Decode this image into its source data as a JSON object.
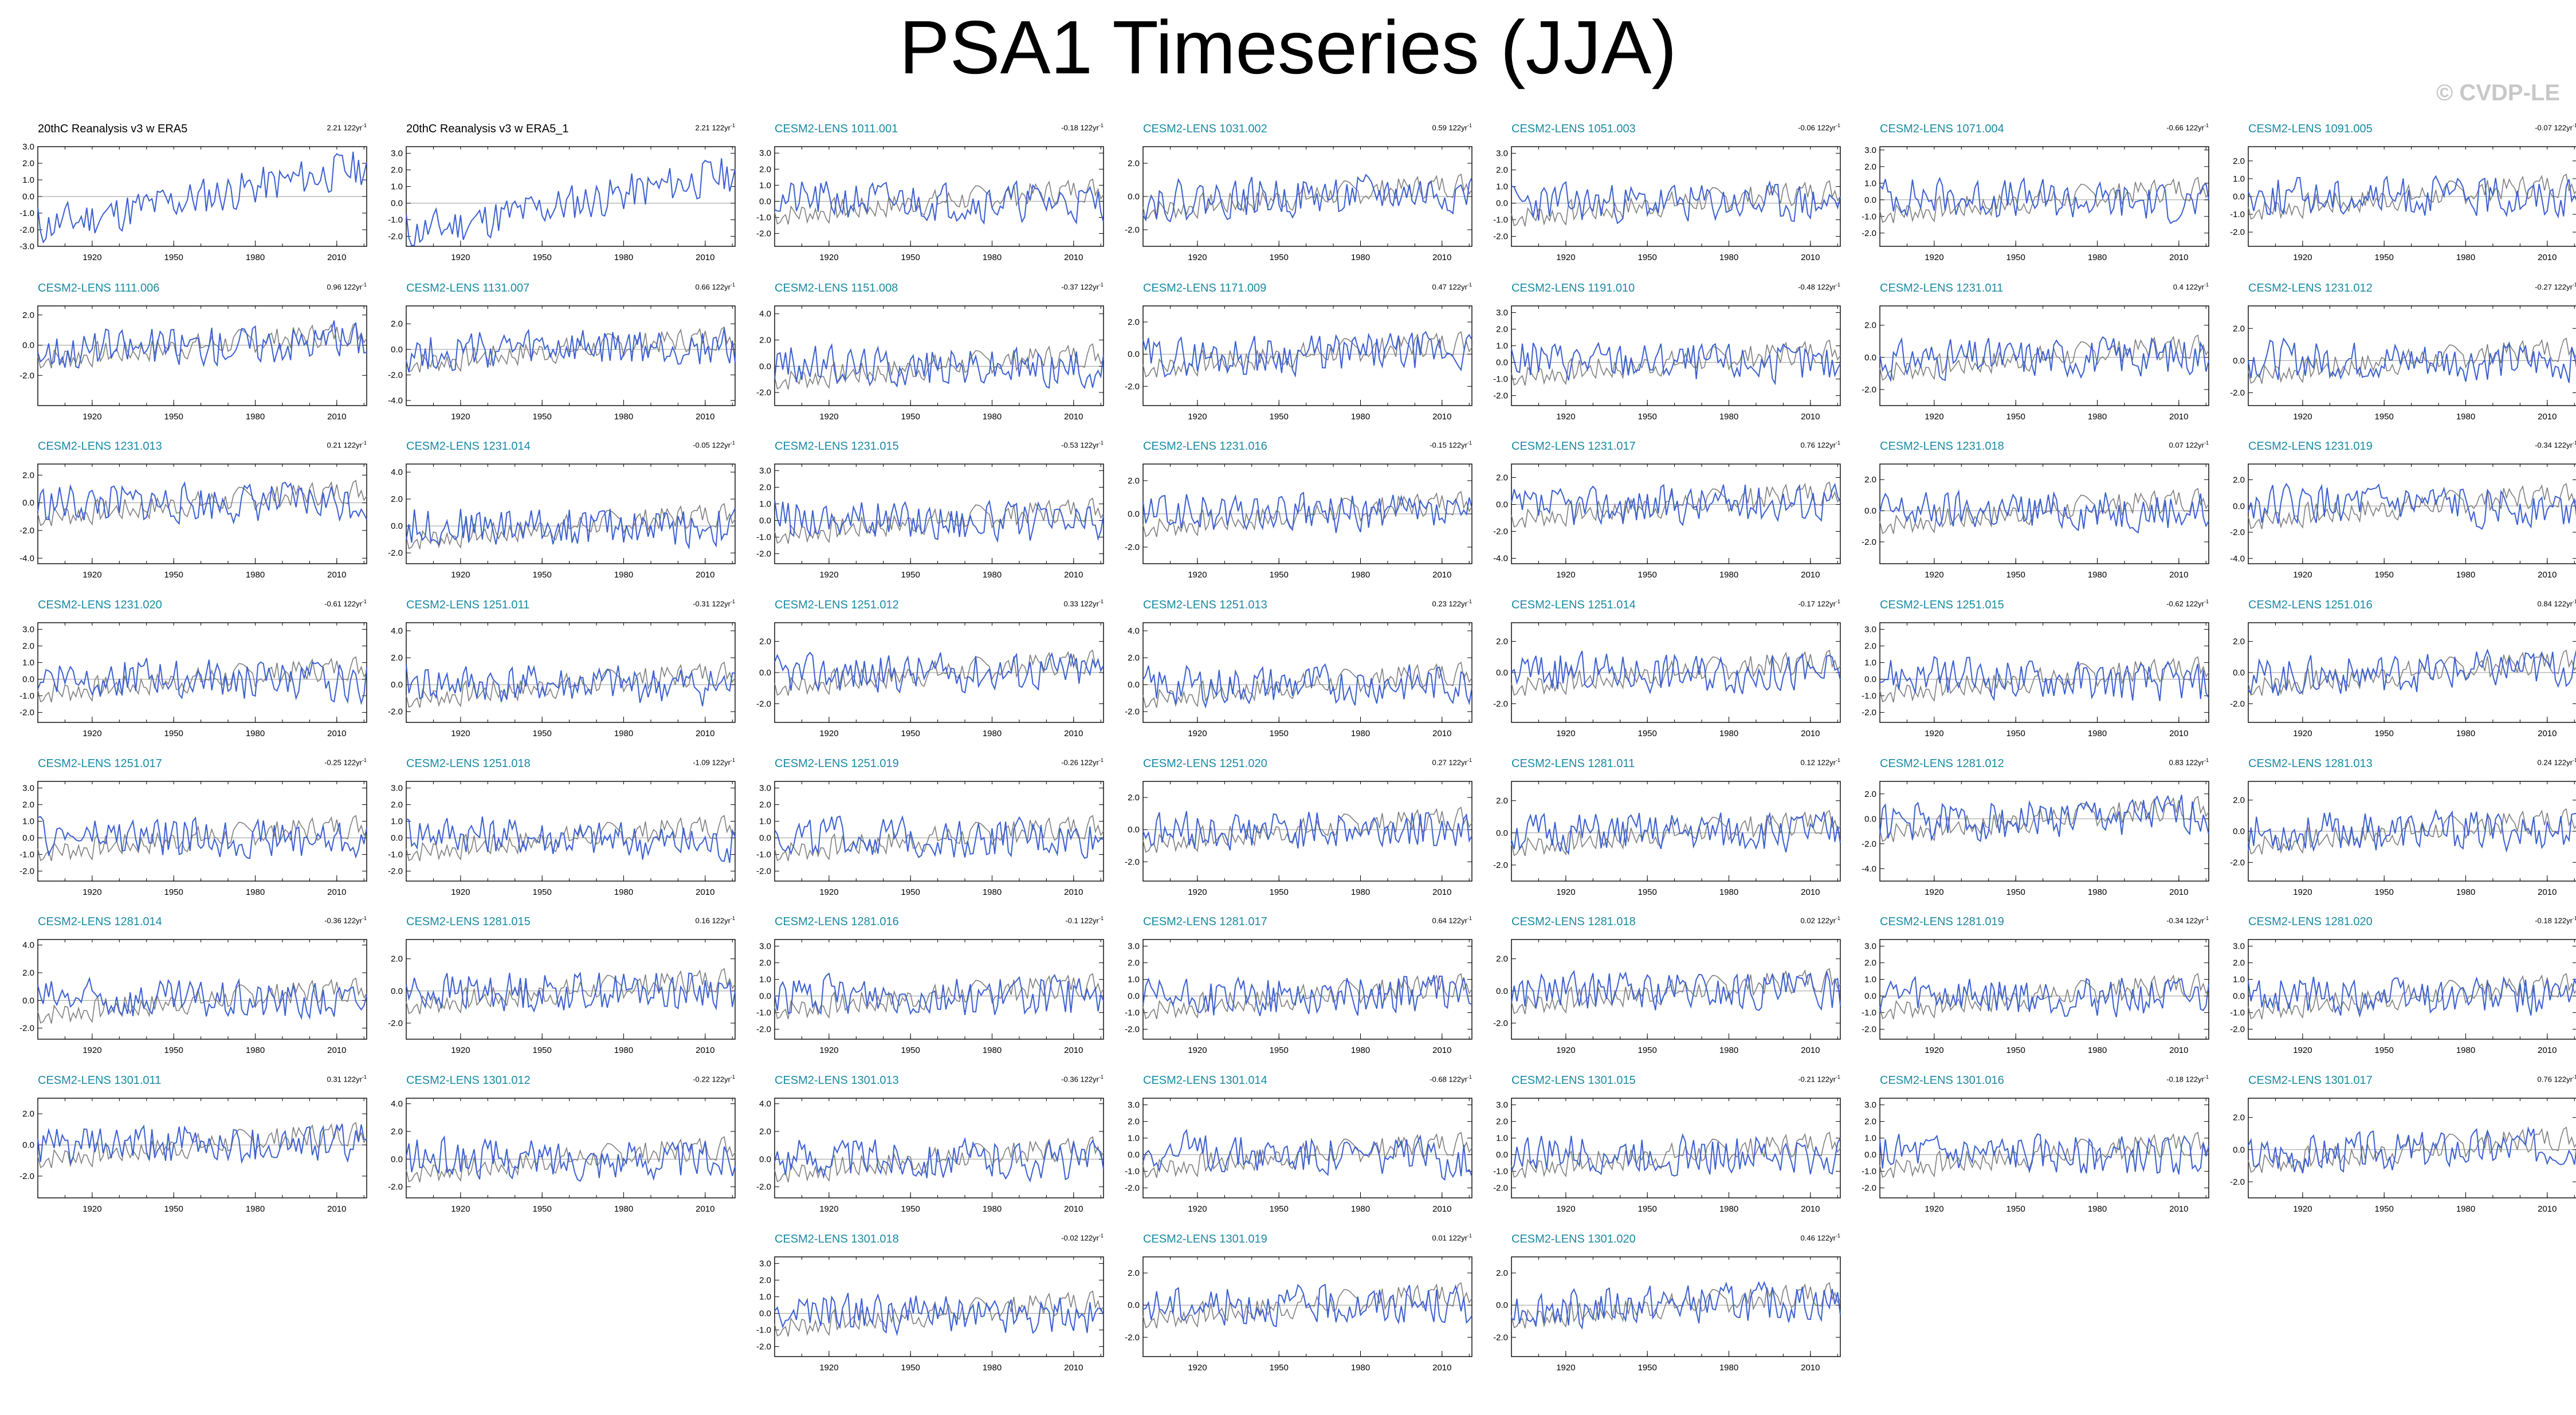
{
  "title": "PSA1 Timeseries (JJA)",
  "watermark": "© CVDP-LE",
  "colors": {
    "member_line": "#3b5fd0",
    "obs_line": "#7f7f7f",
    "member_title": "#1a8aa3",
    "zero_line": "#9a9a9a"
  },
  "chart_data": {
    "type": "line",
    "xlabel": "",
    "ylabel": "",
    "x_range": [
      1900,
      2021
    ],
    "x_ticks": [
      1920,
      1950,
      1980,
      2010
    ],
    "trend_unit": "122yr",
    "panels": [
      {
        "name": "20thC Reanalysis v3 w ERA5",
        "trend": "2.21",
        "kind": "obs",
        "yticks": [
          "3.0",
          "2.0",
          "1.0",
          "0.0",
          "-1.0",
          "-2.0",
          "-3.0"
        ],
        "ylim": [
          -3,
          3
        ],
        "seed": 11
      },
      {
        "name": "20thC Reanalysis v3 w ERA5_1",
        "trend": "2.21",
        "kind": "obs",
        "yticks": [
          "3.0",
          "2.0",
          "1.0",
          "0.0",
          "-1.0",
          "-2.0"
        ],
        "ylim": [
          -2.6,
          3.4
        ],
        "seed": 11
      },
      {
        "name": "CESM2-LENS 1011.001",
        "trend": "-0.18",
        "kind": "member",
        "yticks": [
          "3.0",
          "2.0",
          "1.0",
          "0.0",
          "-1.0",
          "-2.0"
        ],
        "ylim": [
          -2.8,
          3.4
        ],
        "seed": 21
      },
      {
        "name": "CESM2-LENS 1031.002",
        "trend": "0.59",
        "kind": "member",
        "yticks": [
          "2.0",
          "0.0",
          "-2.0"
        ],
        "ylim": [
          -3.0,
          3.0
        ],
        "seed": 22
      },
      {
        "name": "CESM2-LENS 1051.003",
        "trend": "-0.06",
        "kind": "member",
        "yticks": [
          "3.0",
          "2.0",
          "1.0",
          "0.0",
          "-1.0",
          "-2.0"
        ],
        "ylim": [
          -2.6,
          3.4
        ],
        "seed": 23
      },
      {
        "name": "CESM2-LENS 1071.004",
        "trend": "-0.66",
        "kind": "member",
        "yticks": [
          "3.0",
          "2.0",
          "1.0",
          "0.0",
          "-1.0",
          "-2.0"
        ],
        "ylim": [
          -2.8,
          3.2
        ],
        "seed": 24
      },
      {
        "name": "CESM2-LENS 1091.005",
        "trend": "-0.07",
        "kind": "member",
        "yticks": [
          "2.0",
          "1.0",
          "0.0",
          "-1.0",
          "-2.0"
        ],
        "ylim": [
          -2.8,
          2.8
        ],
        "seed": 25
      },
      {
        "name": "CESM2-LENS 1111.006",
        "trend": "0.96",
        "kind": "member",
        "yticks": [
          "2.0",
          "0.0",
          "-2.0"
        ],
        "ylim": [
          -4.0,
          2.6
        ],
        "seed": 26
      },
      {
        "name": "CESM2-LENS 1131.007",
        "trend": "0.66",
        "kind": "member",
        "yticks": [
          "2.0",
          "0.0",
          "-2.0",
          "-4.0"
        ],
        "ylim": [
          -4.4,
          3.4
        ],
        "seed": 27
      },
      {
        "name": "CESM2-LENS 1151.008",
        "trend": "-0.37",
        "kind": "member",
        "yticks": [
          "4.0",
          "2.0",
          "0.0",
          "-2.0"
        ],
        "ylim": [
          -3.0,
          4.6
        ],
        "seed": 28
      },
      {
        "name": "CESM2-LENS 1171.009",
        "trend": "0.47",
        "kind": "member",
        "yticks": [
          "2.0",
          "0.0",
          "-2.0"
        ],
        "ylim": [
          -3.2,
          3.0
        ],
        "seed": 29
      },
      {
        "name": "CESM2-LENS 1191.010",
        "trend": "-0.48",
        "kind": "member",
        "yticks": [
          "3.0",
          "2.0",
          "1.0",
          "0.0",
          "-1.0",
          "-2.0"
        ],
        "ylim": [
          -2.6,
          3.4
        ],
        "seed": 30
      },
      {
        "name": "CESM2-LENS 1231.011",
        "trend": "0.4",
        "kind": "member",
        "yticks": [
          "2.0",
          "0.0",
          "-2.0"
        ],
        "ylim": [
          -3.0,
          3.2
        ],
        "seed": 31
      },
      {
        "name": "CESM2-LENS 1231.012",
        "trend": "-0.27",
        "kind": "member",
        "yticks": [
          "2.0",
          "0.0",
          "-2.0"
        ],
        "ylim": [
          -2.8,
          3.4
        ],
        "seed": 32
      },
      {
        "name": "CESM2-LENS 1231.013",
        "trend": "0.21",
        "kind": "member",
        "yticks": [
          "2.0",
          "0.0",
          "-2.0",
          "-4.0"
        ],
        "ylim": [
          -4.4,
          2.8
        ],
        "seed": 33
      },
      {
        "name": "CESM2-LENS 1231.014",
        "trend": "-0.05",
        "kind": "member",
        "yticks": [
          "4.0",
          "2.0",
          "0.0",
          "-2.0"
        ],
        "ylim": [
          -2.8,
          4.6
        ],
        "seed": 34
      },
      {
        "name": "CESM2-LENS 1231.015",
        "trend": "-0.53",
        "kind": "member",
        "yticks": [
          "3.0",
          "2.0",
          "1.0",
          "0.0",
          "-1.0",
          "-2.0"
        ],
        "ylim": [
          -2.6,
          3.4
        ],
        "seed": 35
      },
      {
        "name": "CESM2-LENS 1231.016",
        "trend": "-0.15",
        "kind": "member",
        "yticks": [
          "2.0",
          "0.0",
          "-2.0"
        ],
        "ylim": [
          -3.0,
          3.0
        ],
        "seed": 36
      },
      {
        "name": "CESM2-LENS 1231.017",
        "trend": "0.76",
        "kind": "member",
        "yticks": [
          "2.0",
          "0.0",
          "-2.0",
          "-4.0"
        ],
        "ylim": [
          -4.4,
          3.0
        ],
        "seed": 37
      },
      {
        "name": "CESM2-LENS 1231.018",
        "trend": "0.07",
        "kind": "member",
        "yticks": [
          "2.0",
          "0.0",
          "-2.0"
        ],
        "ylim": [
          -3.4,
          3.0
        ],
        "seed": 38
      },
      {
        "name": "CESM2-LENS 1231.019",
        "trend": "-0.34",
        "kind": "member",
        "yticks": [
          "2.0",
          "0.0",
          "-2.0",
          "-4.0"
        ],
        "ylim": [
          -4.4,
          3.2
        ],
        "seed": 39
      },
      {
        "name": "CESM2-LENS 1231.020",
        "trend": "-0.61",
        "kind": "member",
        "yticks": [
          "3.0",
          "2.0",
          "1.0",
          "0.0",
          "-1.0",
          "-2.0"
        ],
        "ylim": [
          -2.6,
          3.4
        ],
        "seed": 40
      },
      {
        "name": "CESM2-LENS 1251.011",
        "trend": "-0.31",
        "kind": "member",
        "yticks": [
          "4.0",
          "2.0",
          "0.0",
          "-2.0"
        ],
        "ylim": [
          -2.8,
          4.6
        ],
        "seed": 41
      },
      {
        "name": "CESM2-LENS 1251.012",
        "trend": "0.33",
        "kind": "member",
        "yticks": [
          "2.0",
          "0.0",
          "-2.0"
        ],
        "ylim": [
          -3.2,
          3.2
        ],
        "seed": 42
      },
      {
        "name": "CESM2-LENS 1251.013",
        "trend": "0.23",
        "kind": "member",
        "yticks": [
          "4.0",
          "2.0",
          "0.0",
          "-2.0"
        ],
        "ylim": [
          -2.8,
          4.6
        ],
        "seed": 43
      },
      {
        "name": "CESM2-LENS 1251.014",
        "trend": "-0.17",
        "kind": "member",
        "yticks": [
          "2.0",
          "0.0",
          "-2.0"
        ],
        "ylim": [
          -3.2,
          3.2
        ],
        "seed": 44
      },
      {
        "name": "CESM2-LENS 1251.015",
        "trend": "-0.62",
        "kind": "member",
        "yticks": [
          "3.0",
          "2.0",
          "1.0",
          "0.0",
          "-1.0",
          "-2.0"
        ],
        "ylim": [
          -2.6,
          3.4
        ],
        "seed": 45
      },
      {
        "name": "CESM2-LENS 1251.016",
        "trend": "0.84",
        "kind": "member",
        "yticks": [
          "2.0",
          "0.0",
          "-2.0"
        ],
        "ylim": [
          -3.2,
          3.2
        ],
        "seed": 46
      },
      {
        "name": "CESM2-LENS 1251.017",
        "trend": "-0.25",
        "kind": "member",
        "yticks": [
          "3.0",
          "2.0",
          "1.0",
          "0.0",
          "-1.0",
          "-2.0"
        ],
        "ylim": [
          -2.6,
          3.4
        ],
        "seed": 47
      },
      {
        "name": "CESM2-LENS 1251.018",
        "trend": "-1.09",
        "kind": "member",
        "yticks": [
          "3.0",
          "2.0",
          "1.0",
          "0.0",
          "-1.0",
          "-2.0"
        ],
        "ylim": [
          -2.6,
          3.4
        ],
        "seed": 48
      },
      {
        "name": "CESM2-LENS 1251.019",
        "trend": "-0.26",
        "kind": "member",
        "yticks": [
          "3.0",
          "2.0",
          "1.0",
          "0.0",
          "-1.0",
          "-2.0"
        ],
        "ylim": [
          -2.6,
          3.4
        ],
        "seed": 49
      },
      {
        "name": "CESM2-LENS 1251.020",
        "trend": "0.27",
        "kind": "member",
        "yticks": [
          "2.0",
          "0.0",
          "-2.0"
        ],
        "ylim": [
          -3.2,
          3.0
        ],
        "seed": 50
      },
      {
        "name": "CESM2-LENS 1281.011",
        "trend": "0.12",
        "kind": "member",
        "yticks": [
          "2.0",
          "0.0",
          "-2.0"
        ],
        "ylim": [
          -3.0,
          3.2
        ],
        "seed": 51
      },
      {
        "name": "CESM2-LENS 1281.012",
        "trend": "0.83",
        "kind": "member",
        "yticks": [
          "2.0",
          "0.0",
          "-2.0",
          "-4.0"
        ],
        "ylim": [
          -5.0,
          3.0
        ],
        "seed": 52
      },
      {
        "name": "CESM2-LENS 1281.013",
        "trend": "0.24",
        "kind": "member",
        "yticks": [
          "2.0",
          "0.0",
          "-2.0"
        ],
        "ylim": [
          -3.2,
          3.2
        ],
        "seed": 53
      },
      {
        "name": "CESM2-LENS 1281.014",
        "trend": "-0.36",
        "kind": "member",
        "yticks": [
          "4.0",
          "2.0",
          "0.0",
          "-2.0"
        ],
        "ylim": [
          -2.8,
          4.4
        ],
        "seed": 54
      },
      {
        "name": "CESM2-LENS 1281.015",
        "trend": "0.16",
        "kind": "member",
        "yticks": [
          "2.0",
          "0.0",
          "-2.0"
        ],
        "ylim": [
          -3.0,
          3.2
        ],
        "seed": 55
      },
      {
        "name": "CESM2-LENS 1281.016",
        "trend": "-0.1",
        "kind": "member",
        "yticks": [
          "3.0",
          "2.0",
          "1.0",
          "0.0",
          "-1.0",
          "-2.0"
        ],
        "ylim": [
          -2.6,
          3.4
        ],
        "seed": 56
      },
      {
        "name": "CESM2-LENS 1281.017",
        "trend": "0.64",
        "kind": "member",
        "yticks": [
          "3.0",
          "2.0",
          "1.0",
          "0.0",
          "-1.0",
          "-2.0"
        ],
        "ylim": [
          -2.6,
          3.4
        ],
        "seed": 57
      },
      {
        "name": "CESM2-LENS 1281.018",
        "trend": "0.02",
        "kind": "member",
        "yticks": [
          "2.0",
          "0.0",
          "-2.0"
        ],
        "ylim": [
          -3.0,
          3.2
        ],
        "seed": 58
      },
      {
        "name": "CESM2-LENS 1281.019",
        "trend": "-0.34",
        "kind": "member",
        "yticks": [
          "3.0",
          "2.0",
          "1.0",
          "0.0",
          "-1.0",
          "-2.0"
        ],
        "ylim": [
          -2.6,
          3.4
        ],
        "seed": 59
      },
      {
        "name": "CESM2-LENS 1281.020",
        "trend": "-0.18",
        "kind": "member",
        "yticks": [
          "3.0",
          "2.0",
          "1.0",
          "0.0",
          "-1.0",
          "-2.0"
        ],
        "ylim": [
          -2.6,
          3.4
        ],
        "seed": 60
      },
      {
        "name": "CESM2-LENS 1301.011",
        "trend": "0.31",
        "kind": "member",
        "yticks": [
          "2.0",
          "0.0",
          "-2.0"
        ],
        "ylim": [
          -3.4,
          3.0
        ],
        "seed": 61
      },
      {
        "name": "CESM2-LENS 1301.012",
        "trend": "-0.22",
        "kind": "member",
        "yticks": [
          "4.0",
          "2.0",
          "0.0",
          "-2.0"
        ],
        "ylim": [
          -2.8,
          4.4
        ],
        "seed": 62
      },
      {
        "name": "CESM2-LENS 1301.013",
        "trend": "-0.36",
        "kind": "member",
        "yticks": [
          "4.0",
          "2.0",
          "0.0",
          "-2.0"
        ],
        "ylim": [
          -2.8,
          4.4
        ],
        "seed": 63
      },
      {
        "name": "CESM2-LENS 1301.014",
        "trend": "-0.68",
        "kind": "member",
        "yticks": [
          "3.0",
          "2.0",
          "1.0",
          "0.0",
          "-1.0",
          "-2.0"
        ],
        "ylim": [
          -2.6,
          3.4
        ],
        "seed": 64
      },
      {
        "name": "CESM2-LENS 1301.015",
        "trend": "-0.21",
        "kind": "member",
        "yticks": [
          "3.0",
          "2.0",
          "1.0",
          "0.0",
          "-1.0",
          "-2.0"
        ],
        "ylim": [
          -2.6,
          3.4
        ],
        "seed": 65
      },
      {
        "name": "CESM2-LENS 1301.016",
        "trend": "-0.18",
        "kind": "member",
        "yticks": [
          "3.0",
          "2.0",
          "1.0",
          "0.0",
          "-1.0",
          "-2.0"
        ],
        "ylim": [
          -2.6,
          3.4
        ],
        "seed": 66
      },
      {
        "name": "CESM2-LENS 1301.017",
        "trend": "0.76",
        "kind": "member",
        "yticks": [
          "2.0",
          "0.0",
          "-2.0"
        ],
        "ylim": [
          -3.0,
          3.2
        ],
        "seed": 67
      },
      {
        "name": "CESM2-LENS 1301.018",
        "trend": "-0.02",
        "kind": "member",
        "yticks": [
          "3.0",
          "2.0",
          "1.0",
          "0.0",
          "-1.0",
          "-2.0"
        ],
        "ylim": [
          -2.6,
          3.4
        ],
        "seed": 68
      },
      {
        "name": "CESM2-LENS 1301.019",
        "trend": "0.01",
        "kind": "member",
        "yticks": [
          "2.0",
          "0.0",
          "-2.0"
        ],
        "ylim": [
          -3.2,
          3.0
        ],
        "seed": 69
      },
      {
        "name": "CESM2-LENS 1301.020",
        "trend": "0.46",
        "kind": "member",
        "yticks": [
          "2.0",
          "0.0",
          "-2.0"
        ],
        "ylim": [
          -3.2,
          3.0
        ],
        "seed": 70
      }
    ]
  }
}
